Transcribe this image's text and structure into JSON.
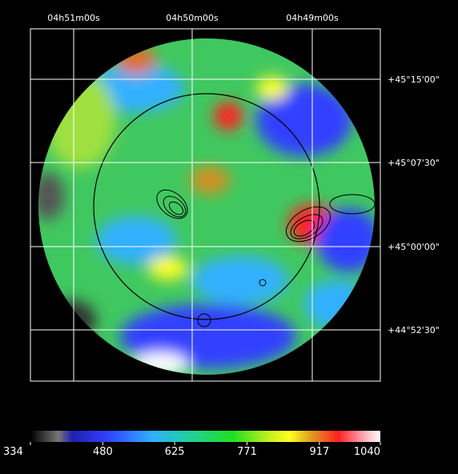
{
  "chart_data": {
    "type": "heatmap",
    "ra_labels": [
      "04h51m00s",
      "04h50m00s",
      "04h49m00s"
    ],
    "dec_labels": [
      "+45°15'00\"",
      "+45°07'30\"",
      "+45°00'00\"",
      "+44°52'30\""
    ],
    "colorbar": {
      "lim": [
        334,
        1040
      ],
      "ticks": [
        334,
        480,
        625,
        771,
        917,
        1040
      ]
    }
  }
}
